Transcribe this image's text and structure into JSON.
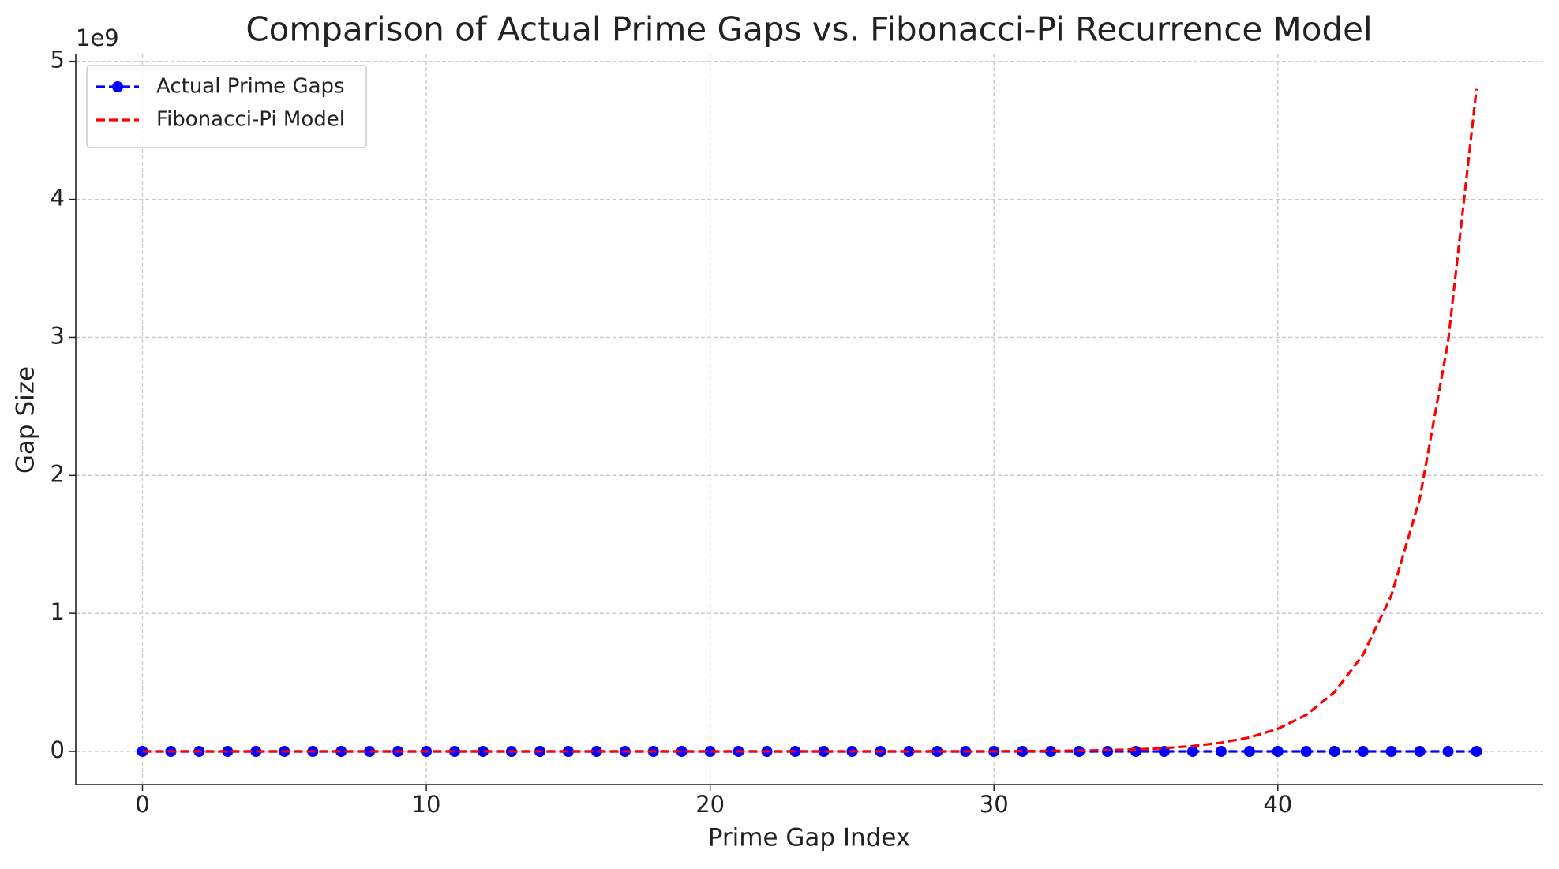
{
  "chart_data": {
    "type": "line",
    "title": "Comparison of Actual Prime Gaps vs. Fibonacci-Pi Recurrence Model",
    "x_label": "Prime Gap Index",
    "y_label": "Gap Size",
    "y_offset_label": "1e9",
    "x": [
      0,
      1,
      2,
      3,
      4,
      5,
      6,
      7,
      8,
      9,
      10,
      11,
      12,
      13,
      14,
      15,
      16,
      17,
      18,
      19,
      20,
      21,
      22,
      23,
      24,
      25,
      26,
      27,
      28,
      29,
      30,
      31,
      32,
      33,
      34,
      35,
      36,
      37,
      38,
      39,
      40,
      41,
      42,
      43,
      44,
      45,
      46,
      47
    ],
    "series": [
      {
        "name": "Actual Prime Gaps",
        "color": "#0000ff",
        "marker": "circle",
        "line_style": "dashed",
        "values": [
          0,
          0,
          0,
          0,
          0,
          0,
          0,
          0,
          0,
          0,
          0,
          0,
          0,
          0,
          0,
          0,
          0,
          0,
          0,
          0,
          0,
          0,
          0,
          0,
          0,
          0,
          0,
          0,
          0,
          0,
          0,
          0,
          0,
          0,
          0,
          0,
          0,
          0,
          0,
          0,
          0,
          0,
          0,
          0,
          0,
          0,
          0,
          0
        ]
      },
      {
        "name": "Fibonacci-Pi Model",
        "color": "#ff0000",
        "marker": "none",
        "line_style": "dashed",
        "values": [
          0,
          0,
          0,
          0,
          0,
          0,
          0,
          0,
          0,
          0,
          0,
          0,
          0,
          0,
          0,
          0,
          0,
          0,
          0,
          0,
          0,
          0,
          0,
          0,
          0,
          0,
          0,
          0,
          0,
          0,
          0.001,
          0.002,
          0.0035,
          0.006,
          0.009,
          0.015,
          0.024,
          0.039,
          0.063,
          0.101,
          0.164,
          0.265,
          0.43,
          0.7,
          1.13,
          1.83,
          2.97,
          4.8
        ]
      }
    ],
    "xlim": [
      -2.35,
      49.35
    ],
    "ylim": [
      -0.24,
      5.05
    ],
    "xticks": [
      0,
      10,
      20,
      30,
      40
    ],
    "yticks": [
      0,
      1,
      2,
      3,
      4,
      5
    ],
    "grid": true,
    "legend": "upper-left"
  }
}
